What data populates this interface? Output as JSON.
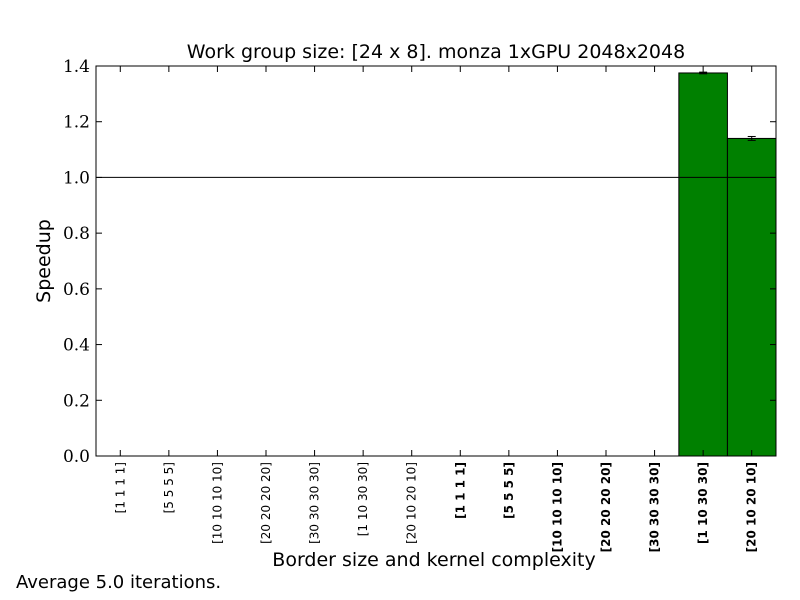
{
  "chart_data": {
    "type": "bar",
    "title": "Work group size: [24 x 8]. monza 1xGPU 2048x2048",
    "xlabel": "Border size and kernel complexity",
    "ylabel": "Speedup",
    "ylim": [
      0.0,
      1.4
    ],
    "yticks": [
      "0.0",
      "0.2",
      "0.4",
      "0.6",
      "0.8",
      "1.0",
      "1.2",
      "1.4"
    ],
    "categories": [
      "[1 1 1 1]",
      "[5 5 5 5]",
      "[10 10 10 10]",
      "[20 20 20 20]",
      "[30 30 30 30]",
      "[1 10 30 30]",
      "[20 10 20 10]",
      "[1 1 1 1]",
      "[5 5 5 5]",
      "[10 10 10 10]",
      "[20 20 20 20]",
      "[30 30 30 30]",
      "[1 10 30 30]",
      "[20 10 20 10]"
    ],
    "bold_categories": [
      false,
      false,
      false,
      false,
      false,
      false,
      false,
      true,
      true,
      true,
      true,
      true,
      true,
      true
    ],
    "values": [
      0,
      0,
      0,
      0,
      0,
      0,
      0,
      0,
      0,
      0,
      0,
      0,
      1.375,
      1.14
    ],
    "errors": [
      0,
      0,
      0,
      0,
      0,
      0,
      0,
      0,
      0,
      0,
      0,
      0,
      0.003,
      0.007
    ],
    "reference_line": 1.0,
    "bar_color": "#008000",
    "grid": false,
    "legend": "none"
  },
  "footnote": "Average 5.0 iterations."
}
